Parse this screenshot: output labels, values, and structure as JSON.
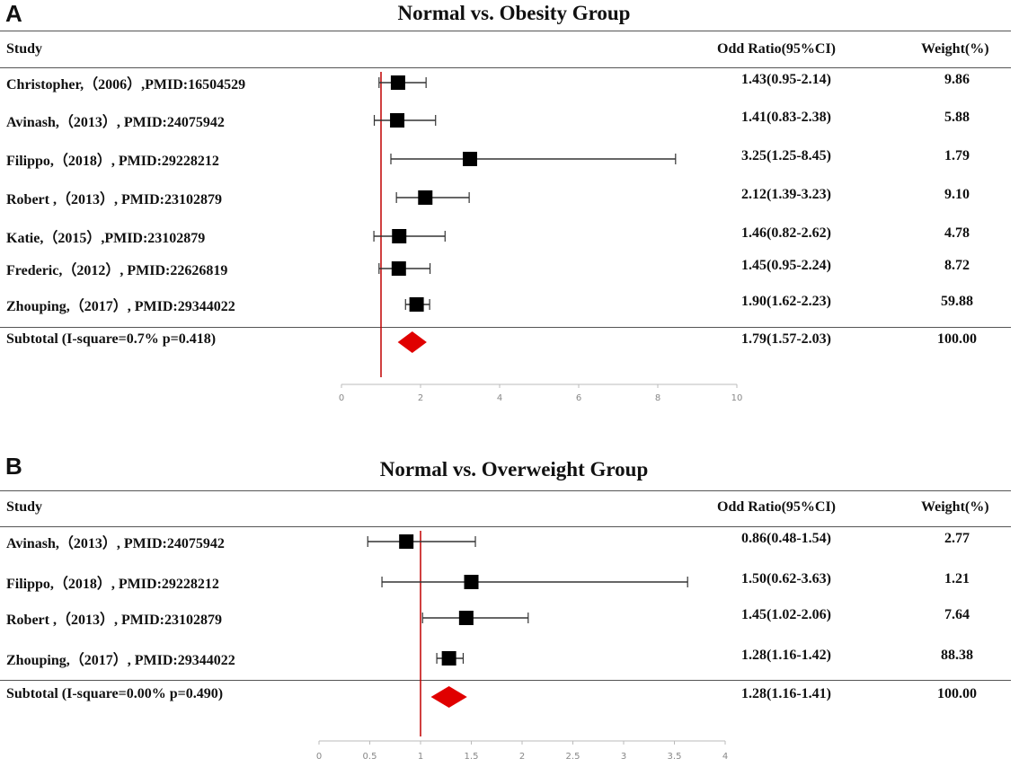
{
  "colors": {
    "diamond": "#e00000",
    "refline": "#c00000",
    "marker": "#000000",
    "axis": "#bbbbbb"
  },
  "chart_data": [
    {
      "type": "forest",
      "panel_label": "A",
      "title": "Normal vs. Obesity Group",
      "headers": {
        "study": "Study",
        "or": "Odd Ratio(95%CI)",
        "weight": "Weight(%)"
      },
      "xlim": [
        0,
        10
      ],
      "xticks": [
        0,
        2,
        4,
        6,
        8,
        10
      ],
      "xtick_labels": [
        "0",
        "2",
        "4",
        "6",
        "8",
        "10"
      ],
      "reference": 1,
      "rows": [
        {
          "study": "Christopher,（2006）,PMID:16504529",
          "or": 1.43,
          "lo": 0.95,
          "hi": 2.14,
          "or_text": "1.43(0.95-2.14)",
          "weight": "9.86"
        },
        {
          "study": "Avinash,（2013）, PMID:24075942",
          "or": 1.41,
          "lo": 0.83,
          "hi": 2.38,
          "or_text": "1.41(0.83-2.38)",
          "weight": "5.88"
        },
        {
          "study": "Filippo,（2018）, PMID:29228212",
          "or": 3.25,
          "lo": 1.25,
          "hi": 8.45,
          "or_text": "3.25(1.25-8.45)",
          "weight": "1.79"
        },
        {
          "study": "Robert ,（2013）, PMID:23102879",
          "or": 2.12,
          "lo": 1.39,
          "hi": 3.23,
          "or_text": "2.12(1.39-3.23)",
          "weight": "9.10"
        },
        {
          "study": "Katie,（2015）,PMID:23102879",
          "or": 1.46,
          "lo": 0.82,
          "hi": 2.62,
          "or_text": "1.46(0.82-2.62)",
          "weight": "4.78"
        },
        {
          "study": "Frederic,（2012）, PMID:22626819",
          "or": 1.45,
          "lo": 0.95,
          "hi": 2.24,
          "or_text": "1.45(0.95-2.24)",
          "weight": "8.72"
        },
        {
          "study": "Zhouping,（2017）, PMID:29344022",
          "or": 1.9,
          "lo": 1.62,
          "hi": 2.23,
          "or_text": "1.90(1.62-2.23)",
          "weight": "59.88"
        }
      ],
      "subtotal": {
        "label": "Subtotal (I-square=0.7% p=0.418)",
        "or": 1.79,
        "lo": 1.57,
        "hi": 2.03,
        "or_text": "1.79(1.57-2.03)",
        "weight": "100.00"
      }
    },
    {
      "type": "forest",
      "panel_label": "B",
      "title": "Normal vs. Overweight Group",
      "headers": {
        "study": "Study",
        "or": "Odd Ratio(95%CI)",
        "weight": "Weight(%)"
      },
      "xlim": [
        0,
        4
      ],
      "xticks": [
        0,
        0.5,
        1,
        1.5,
        2,
        2.5,
        3,
        3.5,
        4
      ],
      "xtick_labels": [
        "0",
        "0.5",
        "1",
        "1.5",
        "2",
        "2.5",
        "3",
        "3.5",
        "4"
      ],
      "reference": 1,
      "rows": [
        {
          "study": "Avinash,（2013）, PMID:24075942",
          "or": 0.86,
          "lo": 0.48,
          "hi": 1.54,
          "or_text": "0.86(0.48-1.54)",
          "weight": "2.77"
        },
        {
          "study": "Filippo,（2018）, PMID:29228212",
          "or": 1.5,
          "lo": 0.62,
          "hi": 3.63,
          "or_text": "1.50(0.62-3.63)",
          "weight": "1.21"
        },
        {
          "study": "Robert ,（2013）, PMID:23102879",
          "or": 1.45,
          "lo": 1.02,
          "hi": 2.06,
          "or_text": "1.45(1.02-2.06)",
          "weight": "7.64"
        },
        {
          "study": "Zhouping,（2017）, PMID:29344022",
          "or": 1.28,
          "lo": 1.16,
          "hi": 1.42,
          "or_text": "1.28(1.16-1.42)",
          "weight": "88.38"
        }
      ],
      "subtotal": {
        "label": "Subtotal (I-square=0.00% p=0.490)",
        "or": 1.28,
        "lo": 1.16,
        "hi": 1.41,
        "or_text": "1.28(1.16-1.41)",
        "weight": "100.00"
      }
    }
  ]
}
